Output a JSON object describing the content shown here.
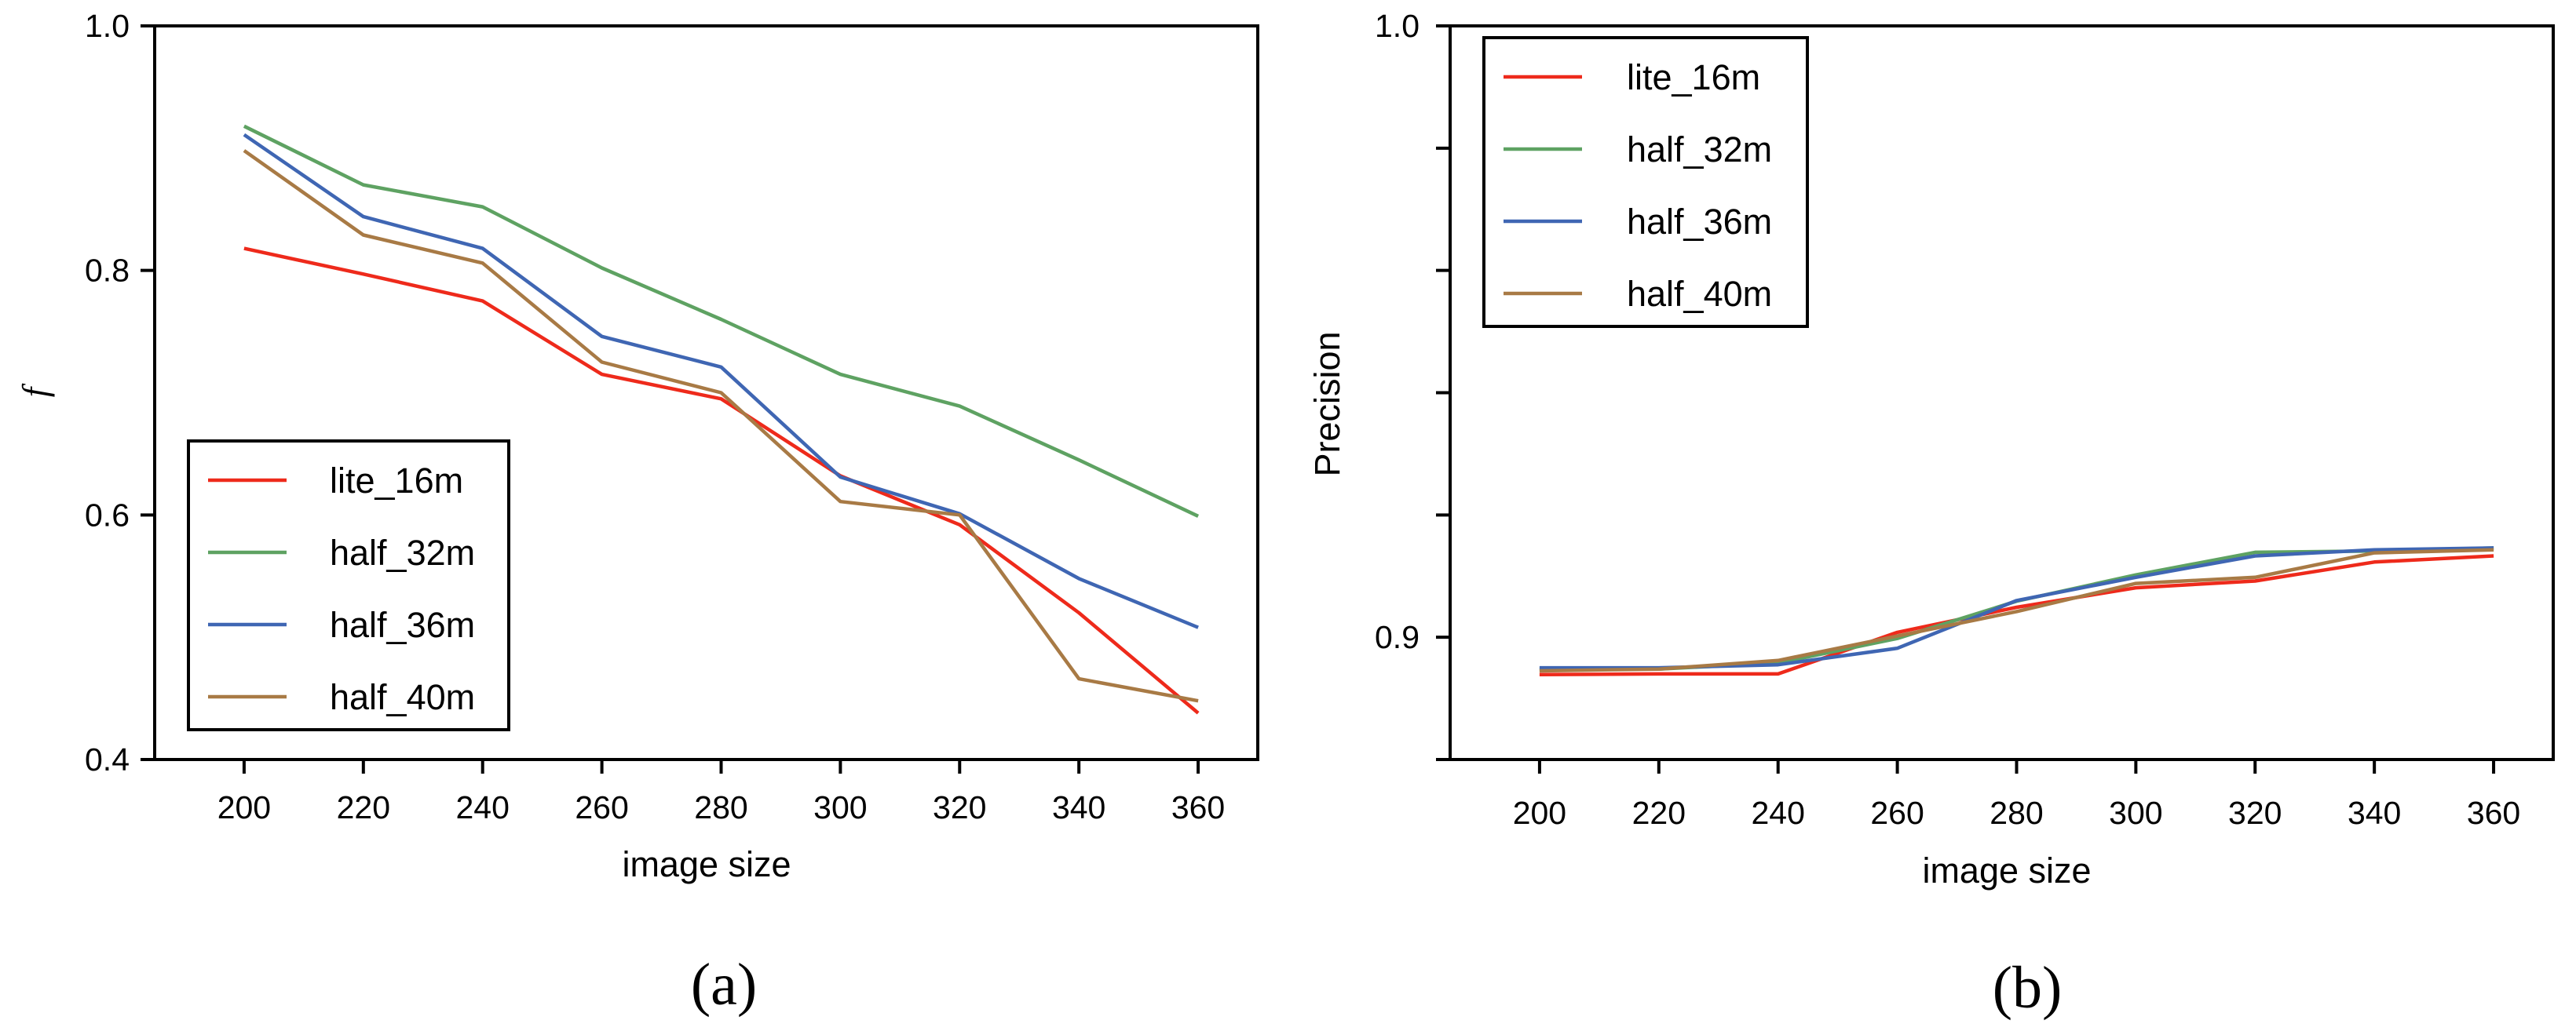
{
  "chart_data": [
    {
      "type": "line",
      "panel_caption": "(a)",
      "title": "",
      "xlabel": "image size",
      "ylabel": "f",
      "x": [
        200,
        220,
        240,
        260,
        280,
        300,
        320,
        340,
        360
      ],
      "xticks": [
        "200",
        "220",
        "240",
        "260",
        "280",
        "300",
        "320",
        "340",
        "360"
      ],
      "yticks": [
        "0.4",
        "0.6",
        "0.8",
        "1.0"
      ],
      "xlim": [
        185,
        370
      ],
      "ylim": [
        0.4,
        1.0
      ],
      "legend_position": "lower-left",
      "series": [
        {
          "name": "lite_16m",
          "color": "#ee2a1b",
          "values": [
            0.818,
            0.797,
            0.775,
            0.715,
            0.695,
            0.632,
            0.592,
            0.52,
            0.438
          ]
        },
        {
          "name": "half_32m",
          "color": "#5ea262",
          "values": [
            0.918,
            0.87,
            0.852,
            0.802,
            0.76,
            0.715,
            0.689,
            0.645,
            0.599
          ]
        },
        {
          "name": "half_36m",
          "color": "#3f66b3",
          "values": [
            0.911,
            0.844,
            0.818,
            0.746,
            0.721,
            0.631,
            0.601,
            0.548,
            0.508
          ]
        },
        {
          "name": "half_40m",
          "color": "#a87a45",
          "values": [
            0.898,
            0.829,
            0.806,
            0.725,
            0.7,
            0.611,
            0.6,
            0.466,
            0.448
          ]
        }
      ]
    },
    {
      "type": "line",
      "panel_caption": "(b)",
      "title": "",
      "xlabel": "image size",
      "ylabel": "Precision",
      "x": [
        200,
        220,
        240,
        260,
        280,
        300,
        320,
        340,
        360
      ],
      "xticks": [
        "200",
        "220",
        "240",
        "260",
        "280",
        "300",
        "320",
        "340",
        "360"
      ],
      "yticks": [
        "0.9",
        "1.0"
      ],
      "minor_yticks": [
        0.88,
        0.92,
        0.94,
        0.96,
        0.98
      ],
      "xlim": [
        185,
        370
      ],
      "ylim": [
        0.88,
        1.0
      ],
      "legend_position": "top-left",
      "series": [
        {
          "name": "lite_16m",
          "color": "#ee2a1b",
          "values": [
            0.8939,
            0.894,
            0.894,
            0.9008,
            0.9049,
            0.9081,
            0.9092,
            0.9123,
            0.9133
          ]
        },
        {
          "name": "half_32m",
          "color": "#5ea262",
          "values": [
            0.8948,
            0.8948,
            0.8958,
            0.8998,
            0.9059,
            0.9102,
            0.9139,
            0.9141,
            0.9146
          ]
        },
        {
          "name": "half_36m",
          "color": "#3f66b3",
          "values": [
            0.895,
            0.895,
            0.8955,
            0.8982,
            0.906,
            0.9098,
            0.9133,
            0.9143,
            0.9146
          ]
        },
        {
          "name": "half_40m",
          "color": "#a87a45",
          "values": [
            0.8945,
            0.8948,
            0.8962,
            0.9002,
            0.9042,
            0.9088,
            0.9098,
            0.9138,
            0.9143
          ]
        }
      ]
    }
  ]
}
